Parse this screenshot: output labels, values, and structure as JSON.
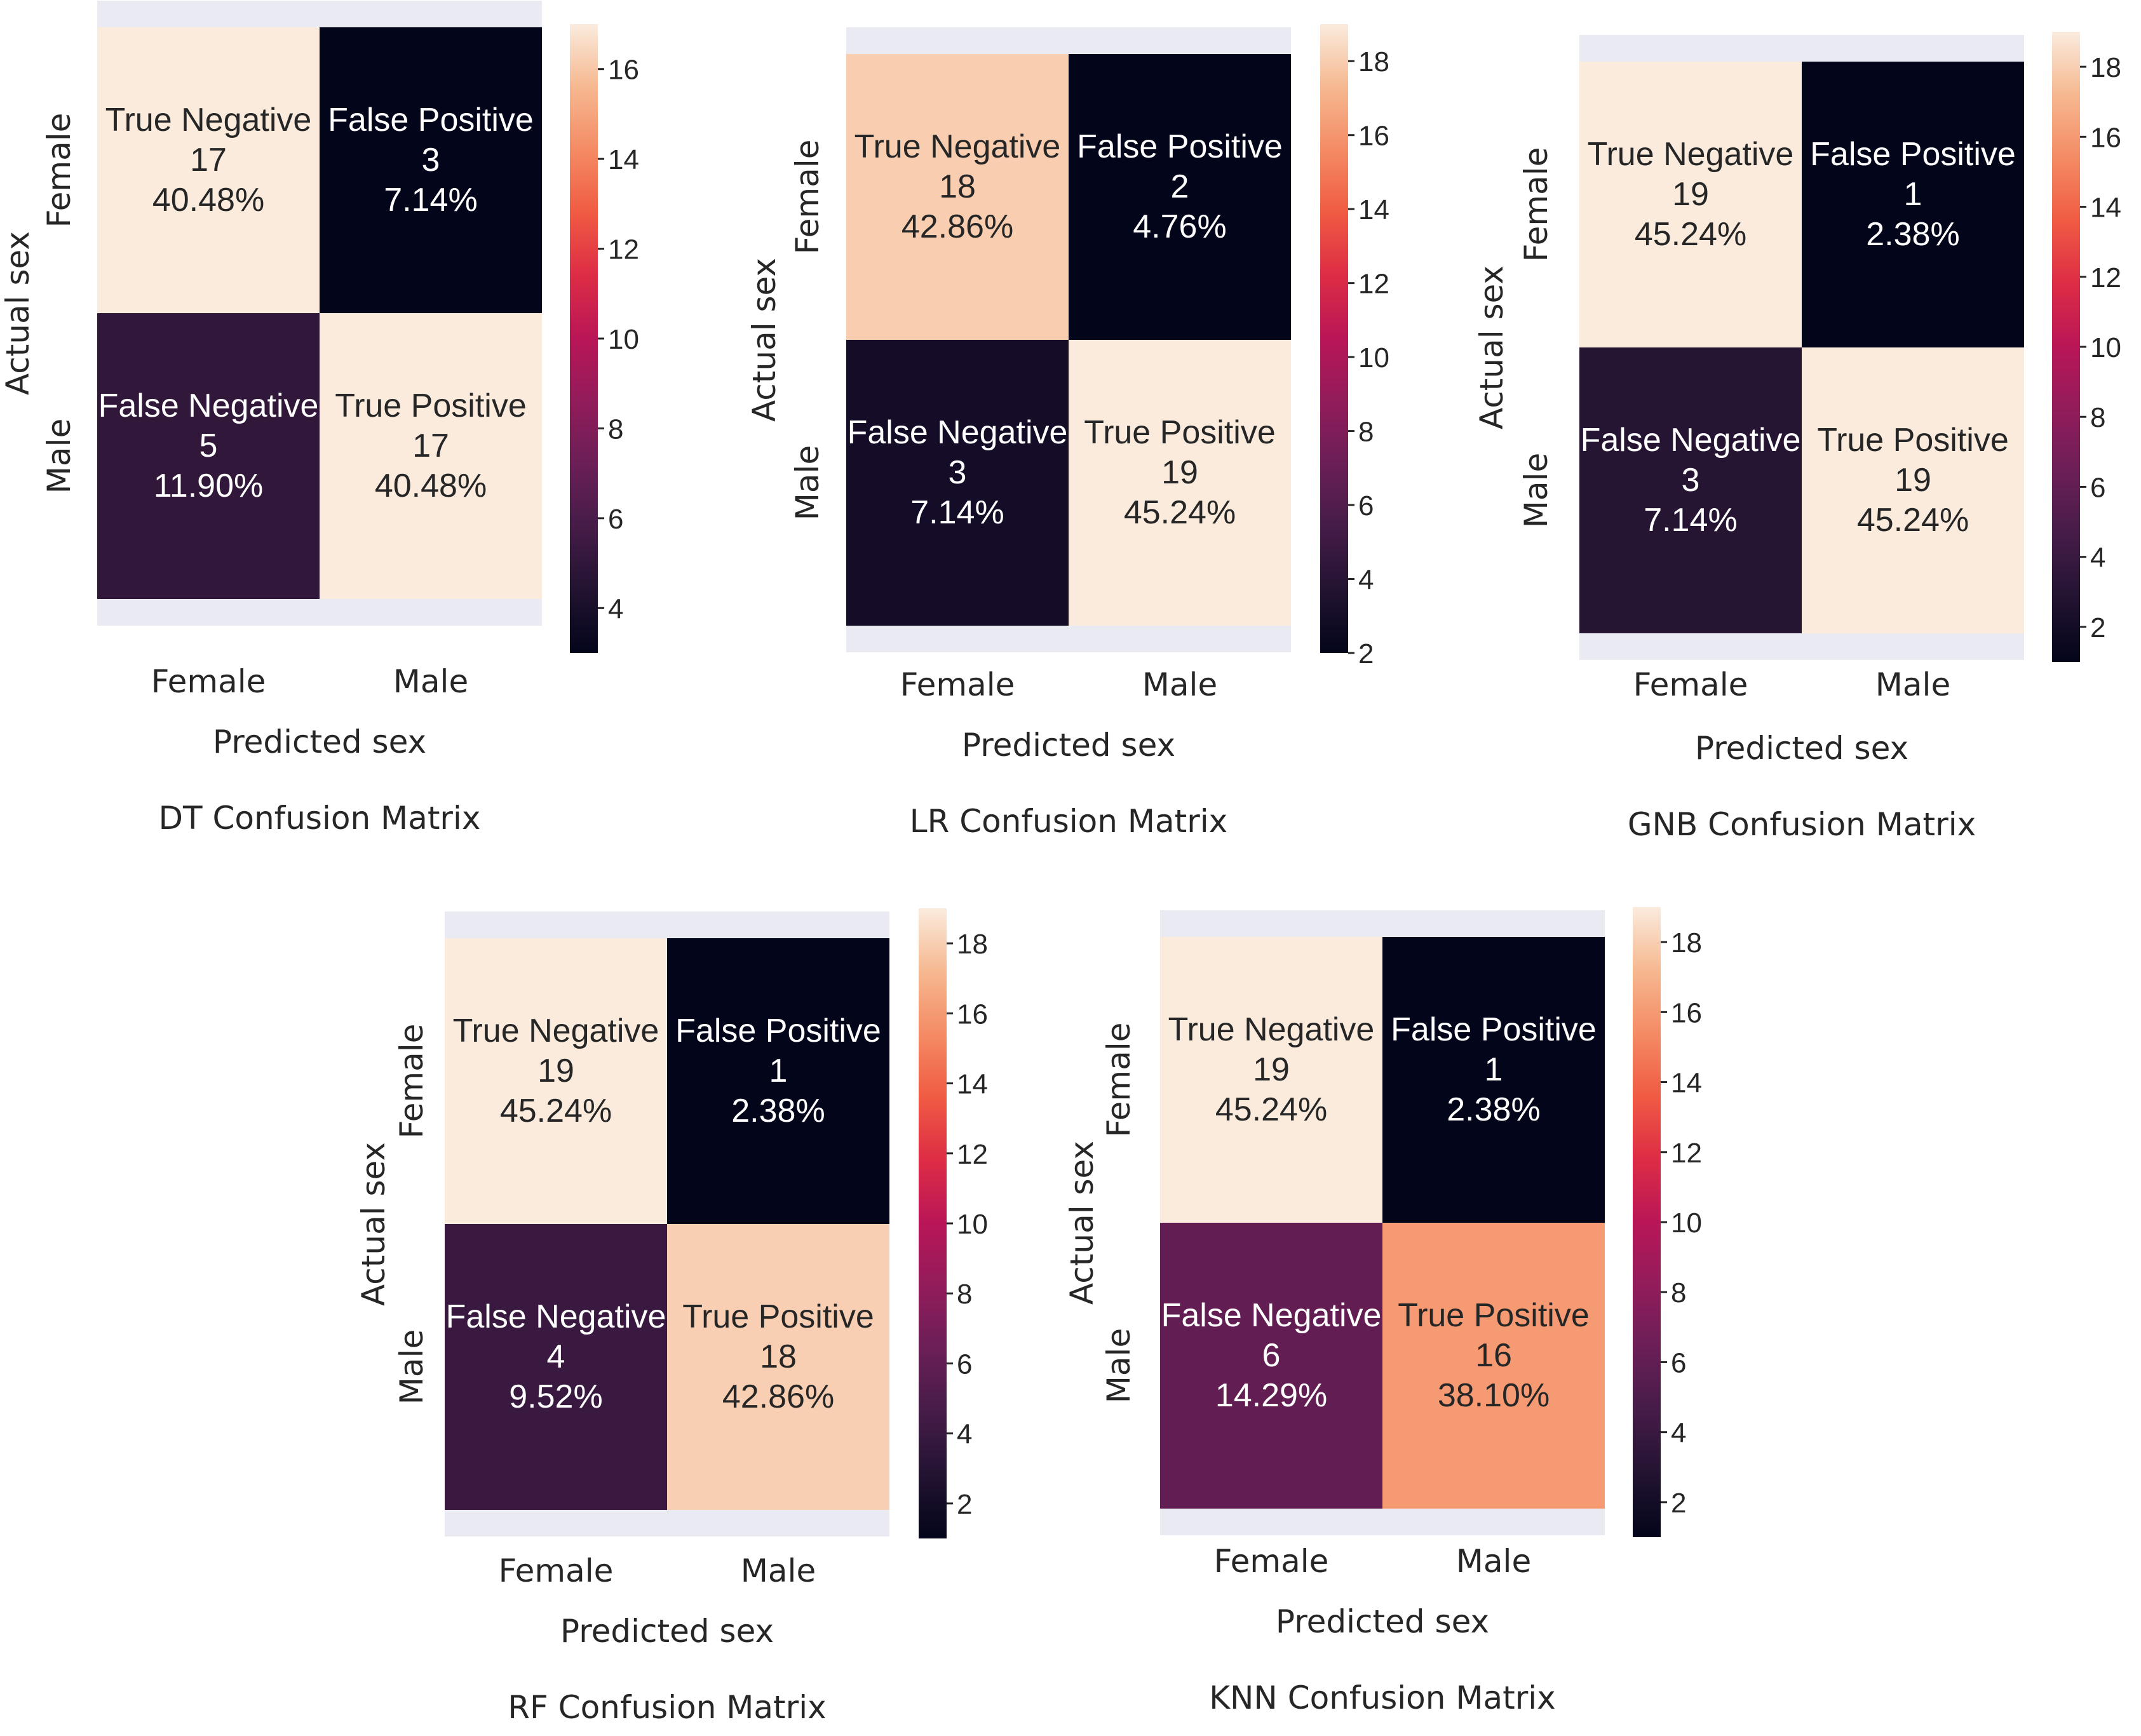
{
  "figure": {
    "caption": ""
  },
  "chart_data": [
    {
      "type": "heatmap",
      "title": "DT Confusion Matrix",
      "xlabel": "Predicted sex",
      "ylabel": "Actual sex",
      "x_categories": [
        "Female",
        "Male"
      ],
      "y_categories": [
        "Female",
        "Male"
      ],
      "cells": [
        [
          {
            "label": "True Negative",
            "value": 17,
            "value_text": "17",
            "percent": "40.48%"
          },
          {
            "label": "False Positive",
            "value": 3,
            "value_text": "3",
            "percent": "7.14%"
          }
        ],
        [
          {
            "label": "False Negative",
            "value": 5,
            "value_text": "5",
            "percent": "11.90%"
          },
          {
            "label": "True Positive",
            "value": 17,
            "value_text": "17",
            "percent": "40.48%"
          }
        ]
      ],
      "colorbar": {
        "range": [
          3,
          17
        ],
        "ticks": [
          "4",
          "6",
          "8",
          "10",
          "12",
          "14",
          "16"
        ]
      }
    },
    {
      "type": "heatmap",
      "title": "LR Confusion Matrix",
      "xlabel": "Predicted sex",
      "ylabel": "Actual sex",
      "x_categories": [
        "Female",
        "Male"
      ],
      "y_categories": [
        "Female",
        "Male"
      ],
      "cells": [
        [
          {
            "label": "True Negative",
            "value": 18,
            "value_text": "18",
            "percent": "42.86%"
          },
          {
            "label": "False Positive",
            "value": 2,
            "value_text": "2",
            "percent": "4.76%"
          }
        ],
        [
          {
            "label": "False Negative",
            "value": 3,
            "value_text": "3",
            "percent": "7.14%"
          },
          {
            "label": "True Positive",
            "value": 19,
            "value_text": "19",
            "percent": "45.24%"
          }
        ]
      ],
      "colorbar": {
        "range": [
          2,
          19
        ],
        "ticks": [
          "2",
          "4",
          "6",
          "8",
          "10",
          "12",
          "14",
          "16",
          "18"
        ]
      }
    },
    {
      "type": "heatmap",
      "title": "GNB Confusion Matrix",
      "xlabel": "Predicted sex",
      "ylabel": "Actual sex",
      "x_categories": [
        "Female",
        "Male"
      ],
      "y_categories": [
        "Female",
        "Male"
      ],
      "cells": [
        [
          {
            "label": "True Negative",
            "value": 19,
            "value_text": "19",
            "percent": "45.24%"
          },
          {
            "label": "False Positive",
            "value": 1,
            "value_text": "1",
            "percent": "2.38%"
          }
        ],
        [
          {
            "label": "False Negative",
            "value": 3,
            "value_text": "3",
            "percent": "7.14%"
          },
          {
            "label": "True Positive",
            "value": 19,
            "value_text": "19",
            "percent": "45.24%"
          }
        ]
      ],
      "colorbar": {
        "range": [
          1,
          19
        ],
        "ticks": [
          "2",
          "4",
          "6",
          "8",
          "10",
          "12",
          "14",
          "16",
          "18"
        ]
      }
    },
    {
      "type": "heatmap",
      "title": "RF Confusion Matrix",
      "xlabel": "Predicted sex",
      "ylabel": "Actual sex",
      "x_categories": [
        "Female",
        "Male"
      ],
      "y_categories": [
        "Female",
        "Male"
      ],
      "cells": [
        [
          {
            "label": "True Negative",
            "value": 19,
            "value_text": "19",
            "percent": "45.24%"
          },
          {
            "label": "False Positive",
            "value": 1,
            "value_text": "1",
            "percent": "2.38%"
          }
        ],
        [
          {
            "label": "False Negative",
            "value": 4,
            "value_text": "4",
            "percent": "9.52%"
          },
          {
            "label": "True Positive",
            "value": 18,
            "value_text": "18",
            "percent": "42.86%"
          }
        ]
      ],
      "colorbar": {
        "range": [
          1,
          19
        ],
        "ticks": [
          "2",
          "4",
          "6",
          "8",
          "10",
          "12",
          "14",
          "16",
          "18"
        ]
      }
    },
    {
      "type": "heatmap",
      "title": "KNN Confusion Matrix",
      "xlabel": "Predicted sex",
      "ylabel": "Actual sex",
      "x_categories": [
        "Female",
        "Male"
      ],
      "y_categories": [
        "Female",
        "Male"
      ],
      "cells": [
        [
          {
            "label": "True Negative",
            "value": 19,
            "value_text": "19",
            "percent": "45.24%"
          },
          {
            "label": "False Positive",
            "value": 1,
            "value_text": "1",
            "percent": "2.38%"
          }
        ],
        [
          {
            "label": "False Negative",
            "value": 6,
            "value_text": "6",
            "percent": "14.29%"
          },
          {
            "label": "True Positive",
            "value": 16,
            "value_text": "16",
            "percent": "38.10%"
          }
        ]
      ],
      "colorbar": {
        "range": [
          1,
          19
        ],
        "ticks": [
          "2",
          "4",
          "6",
          "8",
          "10",
          "12",
          "14",
          "16",
          "18"
        ]
      }
    }
  ]
}
